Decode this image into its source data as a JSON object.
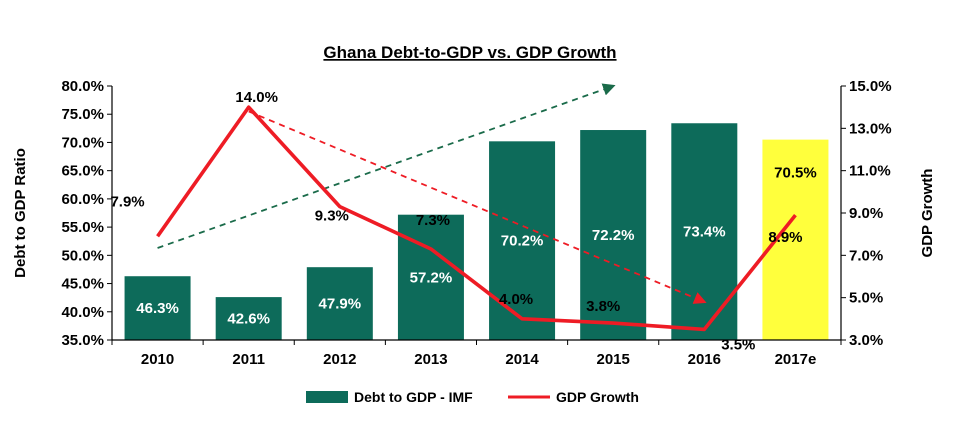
{
  "chart_data": {
    "type": "bar",
    "title": "Ghana Debt-to-GDP vs. GDP Growth",
    "categories": [
      "2010",
      "2011",
      "2012",
      "2013",
      "2014",
      "2015",
      "2016",
      "2017e"
    ],
    "series": [
      {
        "name": "Debt to GDP - IMF",
        "type": "bar",
        "axis": "left",
        "values": [
          46.3,
          42.6,
          47.9,
          57.2,
          70.2,
          72.2,
          73.4,
          70.5
        ],
        "labels": [
          "46.3%",
          "42.6%",
          "47.9%",
          "57.2%",
          "70.2%",
          "72.2%",
          "73.4%",
          "70.5%"
        ],
        "color": "#0d6b5a",
        "highlight_color": "#ffff3c",
        "highlight_index": 7
      },
      {
        "name": "GDP Growth",
        "type": "line",
        "axis": "right",
        "values": [
          7.9,
          14.0,
          9.3,
          7.3,
          4.0,
          3.8,
          3.5,
          8.9
        ],
        "labels": [
          "7.9%",
          "14.0%",
          "9.3%",
          "7.3%",
          "4.0%",
          "3.8%",
          "3.5%",
          "8.9%"
        ],
        "color": "#ee1c25"
      }
    ],
    "y_left": {
      "label": "Debt to GDP Ratio",
      "min": 35,
      "max": 80,
      "step": 5,
      "ticks": [
        "35.0%",
        "40.0%",
        "45.0%",
        "50.0%",
        "55.0%",
        "60.0%",
        "65.0%",
        "70.0%",
        "75.0%",
        "80.0%"
      ]
    },
    "y_right": {
      "label": "GDP Growth",
      "min": 3,
      "max": 15,
      "step": 2,
      "ticks": [
        "3.0%",
        "5.0%",
        "7.0%",
        "9.0%",
        "11.0%",
        "13.0%",
        "15.0%"
      ]
    },
    "trend_arrows": [
      {
        "axis": "left",
        "from": {
          "x": "2010",
          "y": 51.3
        },
        "to": {
          "x": "2015",
          "y": 80.0
        },
        "color": "#1a6b4a"
      },
      {
        "axis": "right",
        "from": {
          "x": "2011",
          "y": 13.8
        },
        "to": {
          "x": "2016",
          "y": 4.8
        },
        "color": "#ee1c25"
      }
    ],
    "grid": false,
    "legend": {
      "position": "bottom"
    }
  }
}
